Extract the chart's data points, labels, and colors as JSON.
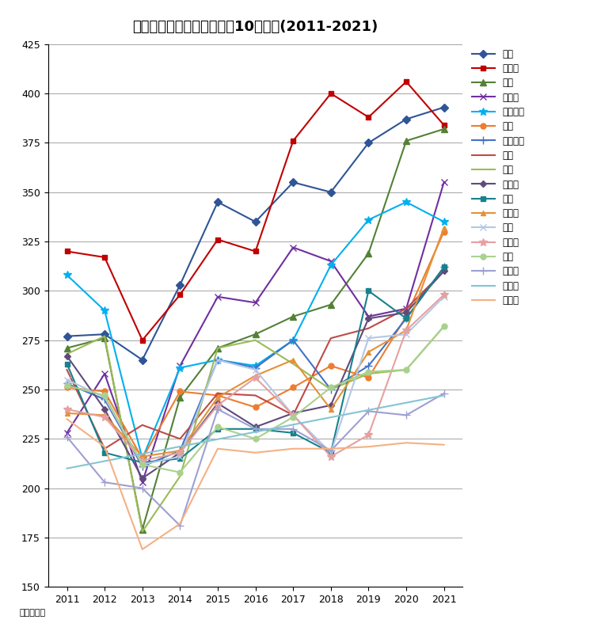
{
  "title": "品川区　マンション坪単価10年変遷(2011-2021)",
  "years": [
    2011,
    2012,
    2013,
    2014,
    2015,
    2016,
    2017,
    2018,
    2019,
    2020,
    2021
  ],
  "ylabel_note": "単位：万円",
  "ylim": [
    150,
    425
  ],
  "yticks": [
    150,
    175,
    200,
    225,
    250,
    275,
    300,
    325,
    350,
    375,
    400,
    425
  ],
  "series": [
    {
      "name": "大崎",
      "color": "#2f5597",
      "marker": "D",
      "markersize": 5,
      "linewidth": 1.5,
      "values": [
        277,
        278,
        265,
        303,
        345,
        335,
        355,
        350,
        375,
        387,
        393
      ]
    },
    {
      "name": "上大崎",
      "color": "#c00000",
      "marker": "s",
      "markersize": 5,
      "linewidth": 1.5,
      "values": [
        320,
        317,
        275,
        298,
        326,
        320,
        376,
        400,
        388,
        406,
        384
      ]
    },
    {
      "name": "小山",
      "color": "#538135",
      "marker": "^",
      "markersize": 6,
      "linewidth": 1.5,
      "values": [
        271,
        276,
        179,
        246,
        271,
        278,
        287,
        293,
        319,
        376,
        382
      ]
    },
    {
      "name": "北品川",
      "color": "#7030a0",
      "marker": "x",
      "markersize": 6,
      "linewidth": 1.5,
      "values": [
        228,
        258,
        203,
        262,
        297,
        294,
        322,
        315,
        287,
        291,
        355
      ]
    },
    {
      "name": "東五反田",
      "color": "#00b0f0",
      "marker": "*",
      "markersize": 7,
      "linewidth": 1.5,
      "values": [
        308,
        290,
        215,
        261,
        265,
        262,
        275,
        313,
        336,
        345,
        335
      ]
    },
    {
      "name": "二葉",
      "color": "#ed7d31",
      "marker": "o",
      "markersize": 5,
      "linewidth": 1.5,
      "values": [
        251,
        249,
        215,
        249,
        247,
        241,
        251,
        262,
        256,
        287,
        330
      ]
    },
    {
      "name": "西五反田",
      "color": "#4472c4",
      "marker": "+",
      "markersize": 7,
      "linewidth": 1.5,
      "values": [
        253,
        245,
        211,
        219,
        265,
        261,
        275,
        250,
        262,
        286,
        312
      ]
    },
    {
      "name": "大井",
      "color": "#be4b48",
      "marker": "None",
      "markersize": 5,
      "linewidth": 1.5,
      "values": [
        260,
        220,
        232,
        225,
        248,
        247,
        237,
        276,
        281,
        291,
        310
      ]
    },
    {
      "name": "中延",
      "color": "#9bbb59",
      "marker": "None",
      "markersize": 5,
      "linewidth": 1.5,
      "values": [
        268,
        277,
        178,
        206,
        271,
        275,
        263,
        250,
        258,
        260,
        282
      ]
    },
    {
      "name": "東品川",
      "color": "#604a7b",
      "marker": "D",
      "markersize": 4,
      "linewidth": 1.5,
      "values": [
        267,
        240,
        205,
        218,
        243,
        231,
        238,
        242,
        286,
        289,
        310
      ]
    },
    {
      "name": "荏原",
      "color": "#17828c",
      "marker": "s",
      "markersize": 4,
      "linewidth": 1.5,
      "values": [
        263,
        218,
        213,
        215,
        230,
        230,
        228,
        218,
        300,
        286,
        312
      ]
    },
    {
      "name": "東大井",
      "color": "#e59138",
      "marker": "^",
      "markersize": 5,
      "linewidth": 1.5,
      "values": [
        238,
        237,
        216,
        219,
        246,
        257,
        265,
        240,
        269,
        280,
        332
      ]
    },
    {
      "name": "平塚",
      "color": "#b4c7e7",
      "marker": "x",
      "markersize": 6,
      "linewidth": 1.5,
      "values": [
        255,
        246,
        212,
        216,
        265,
        260,
        237,
        218,
        276,
        278,
        297
      ]
    },
    {
      "name": "南品川",
      "color": "#e5a0a0",
      "marker": "*",
      "markersize": 7,
      "linewidth": 1.5,
      "values": [
        240,
        236,
        214,
        218,
        242,
        256,
        237,
        216,
        227,
        280,
        298
      ]
    },
    {
      "name": "戸越",
      "color": "#a9d18e",
      "marker": "o",
      "markersize": 5,
      "linewidth": 1.5,
      "values": [
        252,
        247,
        212,
        208,
        231,
        225,
        236,
        251,
        259,
        260,
        282
      ]
    },
    {
      "name": "西大井",
      "color": "#9ea0d4",
      "marker": "+",
      "markersize": 7,
      "linewidth": 1.5,
      "values": [
        226,
        203,
        200,
        181,
        240,
        230,
        230,
        219,
        239,
        237,
        248
      ]
    },
    {
      "name": "南大井",
      "color": "#85c4d4",
      "marker": "None",
      "markersize": 5,
      "linewidth": 1.5,
      "values": [
        210,
        null,
        null,
        null,
        null,
        null,
        null,
        null,
        null,
        null,
        247
      ]
    },
    {
      "name": "旗の台",
      "color": "#f4b183",
      "marker": "None",
      "markersize": 5,
      "linewidth": 1.5,
      "values": [
        235,
        221,
        169,
        182,
        220,
        218,
        220,
        220,
        221,
        223,
        222
      ]
    }
  ]
}
